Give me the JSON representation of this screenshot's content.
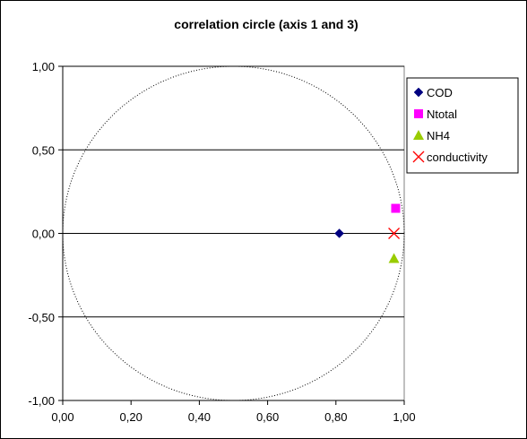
{
  "chart_data": {
    "type": "scatter",
    "title": "correlation circle (axis 1 and 3)",
    "xlim": [
      0.0,
      1.0
    ],
    "ylim": [
      -1.0,
      1.0
    ],
    "x_ticks": [
      "0,00",
      "0,20",
      "0,40",
      "0,60",
      "0,80",
      "1,00"
    ],
    "y_ticks": [
      "1,00",
      "0,50",
      "0,00",
      "-0,50",
      "-1,00"
    ],
    "x_tick_values": [
      0.0,
      0.2,
      0.4,
      0.6,
      0.8,
      1.0
    ],
    "y_tick_values": [
      1.0,
      0.5,
      0.0,
      -0.5,
      -1.0
    ],
    "grid": "horizontal",
    "legend_position": "right",
    "circle": {
      "center_x": 0.5,
      "center_y": 0.0,
      "radius": 1.0
    },
    "series": [
      {
        "name": "COD",
        "marker": "diamond",
        "color": "#000080",
        "x": 0.81,
        "y": 0.0
      },
      {
        "name": "Ntotal",
        "marker": "square",
        "color": "#ff00ff",
        "x": 0.975,
        "y": 0.15
      },
      {
        "name": "NH4",
        "marker": "triangle",
        "color": "#99cc00",
        "x": 0.97,
        "y": -0.15
      },
      {
        "name": "conductivity",
        "marker": "x",
        "color": "#ff0000",
        "x": 0.97,
        "y": 0.0
      }
    ]
  }
}
